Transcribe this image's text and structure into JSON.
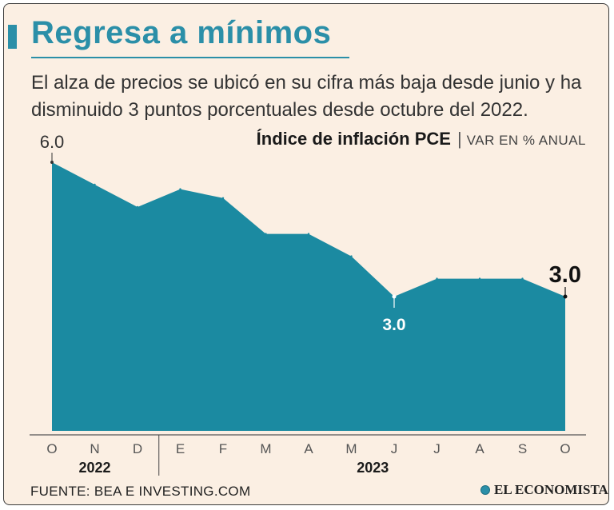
{
  "header": {
    "title": "Regresa a mínimos",
    "subtitle": "El alza de precios se ubicó en su cifra más baja desde junio y ha disminuido 3 puntos porcentuales desde octubre del 2022."
  },
  "chart_data": {
    "type": "area",
    "title": "Índice de inflación PCE",
    "unit": "VAR EN % ANUAL",
    "categories": [
      "O",
      "N",
      "D",
      "E",
      "F",
      "M",
      "A",
      "M",
      "J",
      "J",
      "A",
      "S",
      "O"
    ],
    "years": [
      {
        "label": "2022",
        "start": 0,
        "end": 2
      },
      {
        "label": "2023",
        "start": 3,
        "end": 12
      }
    ],
    "values": [
      6.0,
      5.5,
      5.0,
      5.4,
      5.2,
      4.4,
      4.4,
      3.9,
      3.0,
      3.4,
      3.4,
      3.4,
      3.0
    ],
    "ylim": [
      0,
      6.5
    ],
    "annotations": [
      {
        "index": 0,
        "text": "6.0",
        "style": "light"
      },
      {
        "index": 8,
        "text": "3.0",
        "style": "inside"
      },
      {
        "index": 12,
        "text": "3.0",
        "style": "bold"
      }
    ],
    "grid": false,
    "legend": "none"
  },
  "colors": {
    "area": "#1b8aa1",
    "accent": "#2b8fa8",
    "background": "#fbefe3"
  },
  "footer": {
    "source": "FUENTE: BEA E INVESTING.COM",
    "brand": "EL ECONOMISTA"
  }
}
